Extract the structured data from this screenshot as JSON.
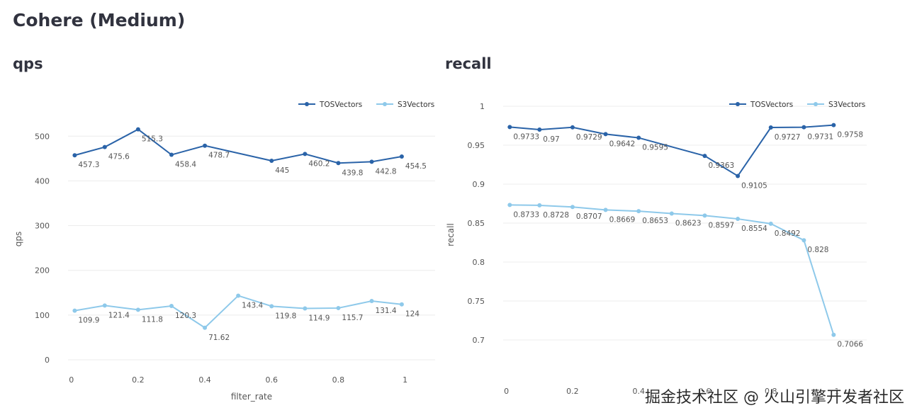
{
  "page": {
    "title": "Cohere (Medium)",
    "watermark": "掘金技术社区 @ 火山引擎开发者社区"
  },
  "colors": {
    "tos": "#2a63a8",
    "s3": "#8ec9ea",
    "grid": "#ececec"
  },
  "chart_data": [
    {
      "type": "line",
      "title": "qps",
      "xlabel": "filter_rate",
      "ylabel": "qps",
      "xlim": [
        -0.01,
        1.09
      ],
      "ylim": [
        0,
        540
      ],
      "xticks": [
        0,
        0.2,
        0.4,
        0.6,
        0.8,
        1
      ],
      "xtick_labels": [
        "0",
        "0.2",
        "0.4",
        "0.6",
        "0.8",
        "1"
      ],
      "yticks": [
        0,
        100,
        200,
        300,
        400,
        500
      ],
      "ytick_labels": [
        "0",
        "100",
        "200",
        "300",
        "400",
        "500"
      ],
      "grid": true,
      "legend": "top-right",
      "x": [
        0.01,
        0.1,
        0.2,
        0.3,
        0.4,
        0.6,
        0.7,
        0.8,
        0.9,
        0.99
      ],
      "series": [
        {
          "name": "TOSVectors",
          "x": [
            0.01,
            0.1,
            0.2,
            0.3,
            0.4,
            0.6,
            0.7,
            0.8,
            0.9,
            0.99
          ],
          "values": [
            457.3,
            475.6,
            515.3,
            458.4,
            478.7,
            445,
            460.2,
            439.8,
            442.8,
            454.5
          ],
          "labels": [
            "457.3",
            "475.6",
            "515.3",
            "458.4",
            "478.7",
            "445",
            "460.2",
            "439.8",
            "442.8",
            "454.5"
          ]
        },
        {
          "name": "S3Vectors",
          "x": [
            0.01,
            0.1,
            0.2,
            0.3,
            0.4,
            0.5,
            0.6,
            0.7,
            0.8,
            0.9,
            0.99
          ],
          "values": [
            109.9,
            121.4,
            111.8,
            120.3,
            71.62,
            143.4,
            119.8,
            114.9,
            115.7,
            131.4,
            124
          ],
          "labels": [
            "109.9",
            "121.4",
            "111.8",
            "120.3",
            "71.62",
            "143.4",
            "119.8",
            "114.9",
            "115.7",
            "131.4",
            "124"
          ]
        }
      ]
    },
    {
      "type": "line",
      "title": "recall",
      "xlabel": "",
      "ylabel": "recall",
      "xlim": [
        -0.01,
        1.09
      ],
      "ylim": [
        0.66,
        1.01
      ],
      "xticks": [
        0,
        0.2,
        0.4,
        0.6,
        0.8,
        1
      ],
      "xtick_labels": [
        "0",
        "0.2",
        "0.4",
        "0.6",
        "0.8",
        "1"
      ],
      "yticks": [
        0.7,
        0.75,
        0.8,
        0.85,
        0.9,
        0.95,
        1
      ],
      "ytick_labels": [
        "0.7",
        "0.75",
        "0.8",
        "0.85",
        "0.9",
        "0.95",
        "1"
      ],
      "grid": true,
      "legend": "top-right",
      "series": [
        {
          "name": "TOSVectors",
          "x": [
            0.01,
            0.1,
            0.2,
            0.3,
            0.4,
            0.6,
            0.7,
            0.8,
            0.9,
            0.99
          ],
          "values": [
            0.9733,
            0.97,
            0.9729,
            0.9642,
            0.9595,
            0.9363,
            0.9105,
            0.9727,
            0.9731,
            0.9758
          ],
          "labels": [
            "0.9733",
            "0.97",
            "0.9729",
            "0.9642",
            "0.9595",
            "0.9363",
            "0.9105",
            "0.9727",
            "0.9731",
            "0.9758"
          ]
        },
        {
          "name": "S3Vectors",
          "x": [
            0.01,
            0.1,
            0.2,
            0.3,
            0.4,
            0.5,
            0.6,
            0.7,
            0.8,
            0.9,
            0.99
          ],
          "values": [
            0.8733,
            0.8728,
            0.8707,
            0.8669,
            0.8653,
            0.8623,
            0.8597,
            0.8554,
            0.8492,
            0.828,
            0.7066
          ],
          "labels": [
            "0.8733",
            "0.8728",
            "0.8707",
            "0.8669",
            "0.8653",
            "0.8623",
            "0.8597",
            "0.8554",
            "0.8492",
            "0.828",
            "0.7066"
          ]
        }
      ]
    }
  ]
}
